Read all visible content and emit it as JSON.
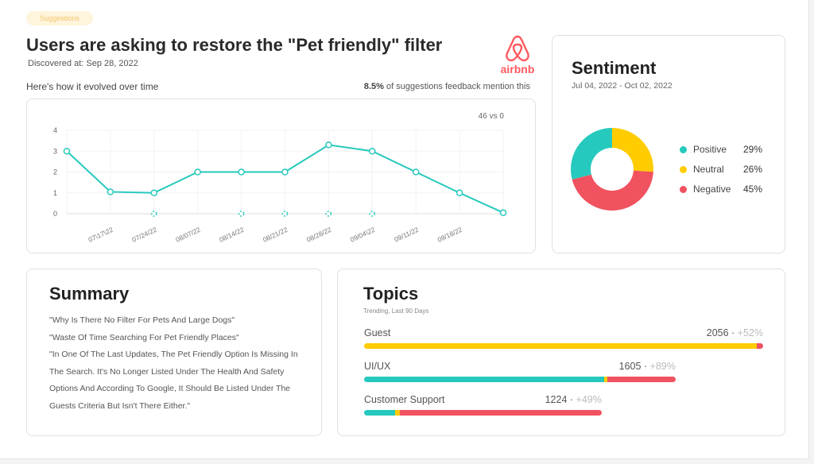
{
  "badge": "Suggestions",
  "title": "Users are asking to restore the \"Pet friendly\" filter",
  "discovered": "Discovered at: Sep 28, 2022",
  "brand": "airbnb",
  "evolve_label": "Here's how it evolved over time",
  "mention_pct": "8.5%",
  "mention_text": " of suggestions feedback mention this",
  "colors": {
    "teal": "#26c9bd",
    "yellow": "#ffcc00",
    "red": "#f0525f",
    "brand": "#ff5a5f"
  },
  "chart_data": {
    "type": "line",
    "annotation": "46 vs 0",
    "categories": [
      "",
      "07\\17\\22",
      "07/24/22",
      "08/07/22",
      "08/14/22",
      "08/21/22",
      "08/28/22",
      "09/04\\22",
      "09/11/22",
      "09/18/22",
      ""
    ],
    "yticks": [
      "0",
      "1",
      "2",
      "3",
      "4"
    ],
    "ylim": [
      0,
      4
    ],
    "grid": true,
    "series": [
      {
        "values": [
          3,
          1.05,
          1,
          2,
          2,
          2,
          3.3,
          3,
          2,
          1,
          0.05
        ],
        "color": "#26c9bd"
      },
      {
        "values": [
          null,
          null,
          0,
          null,
          0,
          0,
          0,
          0,
          null,
          null,
          null
        ],
        "color": "#26c9bd",
        "style": "dashed-markers"
      }
    ]
  },
  "sentiment": {
    "title": "Sentiment",
    "range": "Jul 04, 2022 - Oct 02, 2022",
    "items": [
      {
        "label": "Positive",
        "pct": "29%",
        "value": 29,
        "color": "#26c9bd"
      },
      {
        "label": "Neutral",
        "pct": "26%",
        "value": 26,
        "color": "#ffcc00"
      },
      {
        "label": "Negative",
        "pct": "45%",
        "value": 45,
        "color": "#f0525f"
      }
    ]
  },
  "summary": {
    "title": "Summary",
    "quotes": [
      "\"Why Is There No Filter For Pets And Large Dogs\"",
      "\"Waste Of Time Searching For Pet Friendly Places\"",
      "\"In One Of The Last Updates, The Pet Friendly Option Is Missing In The Search. It's No Longer Listed Under The Health And Safety Options And According To Google, It Should Be Listed Under The Guests Criteria But Isn't There Either.\""
    ]
  },
  "topics": {
    "title": "Topics",
    "subtitle": "Trending, Last 90 Days",
    "items": [
      {
        "label": "Guest",
        "count": "2056",
        "change": "+52%",
        "value": 2056,
        "segments": [
          {
            "color": "#ffcc00",
            "share": 0.985
          },
          {
            "color": "#f0525f",
            "share": 0.015
          }
        ]
      },
      {
        "label": "UI/UX",
        "count": "1605",
        "change": "+89%",
        "value": 1605,
        "segments": [
          {
            "color": "#26c9bd",
            "share": 0.77
          },
          {
            "color": "#ffcc00",
            "share": 0.01
          },
          {
            "color": "#f0525f",
            "share": 0.22
          }
        ]
      },
      {
        "label": "Customer Support",
        "count": "1224",
        "change": "+49%",
        "value": 1224,
        "segments": [
          {
            "color": "#26c9bd",
            "share": 0.13
          },
          {
            "color": "#ffcc00",
            "share": 0.02
          },
          {
            "color": "#f0525f",
            "share": 0.85
          }
        ]
      }
    ]
  }
}
